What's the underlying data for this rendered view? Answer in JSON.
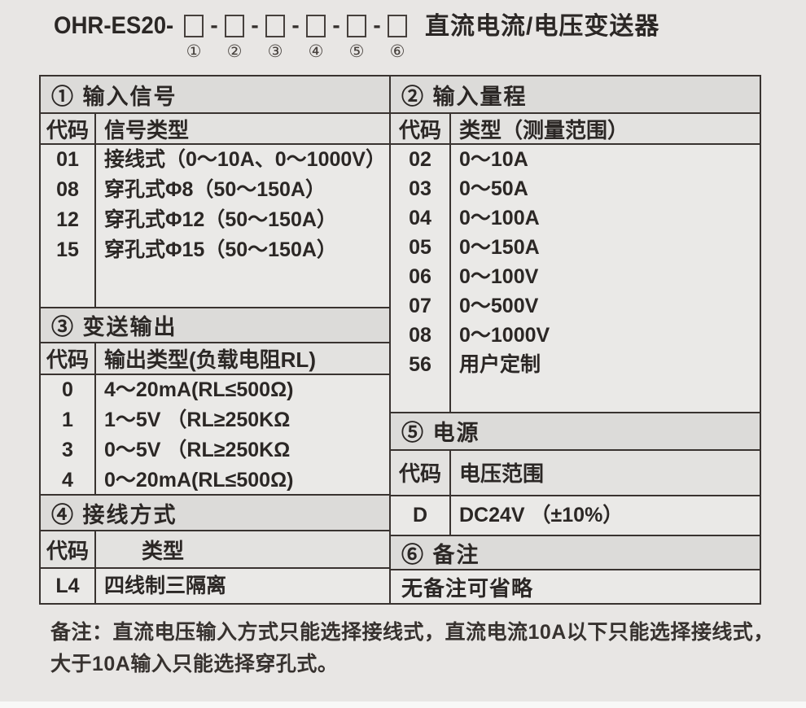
{
  "title": {
    "model_prefix": "OHR-ES20-",
    "separator": "-",
    "box_labels": [
      "①",
      "②",
      "③",
      "④",
      "⑤",
      "⑥"
    ],
    "product_name": "直流电流/电压变送器"
  },
  "sections": {
    "s1": {
      "header": "① 输入信号",
      "col_code": "代码",
      "col_type": "信号类型",
      "rows": [
        {
          "code": "01",
          "type": "接线式（0～10A、0～1000V）"
        },
        {
          "code": "08",
          "type": "穿孔式Φ8（50～150A）"
        },
        {
          "code": "12",
          "type": "穿孔式Φ12（50～150A）"
        },
        {
          "code": "15",
          "type": "穿孔式Φ15（50～150A）"
        }
      ]
    },
    "s2": {
      "header": "② 输入量程",
      "col_code": "代码",
      "col_type": "类型（测量范围）",
      "rows": [
        {
          "code": "02",
          "type": "0～10A"
        },
        {
          "code": "03",
          "type": "0～50A"
        },
        {
          "code": "04",
          "type": "0～100A"
        },
        {
          "code": "05",
          "type": "0～150A"
        },
        {
          "code": "06",
          "type": "0～100V"
        },
        {
          "code": "07",
          "type": "0～500V"
        },
        {
          "code": "08",
          "type": "0～1000V"
        },
        {
          "code": "56",
          "type": "用户定制"
        }
      ]
    },
    "s3": {
      "header": "③ 变送输出",
      "col_code": "代码",
      "col_type": "输出类型(负载电阻RL)",
      "rows": [
        {
          "code": "0",
          "type": "4～20mA(RL≤500Ω)"
        },
        {
          "code": "1",
          "type": "1～5V （RL≥250KΩ"
        },
        {
          "code": "3",
          "type": "0～5V （RL≥250KΩ"
        },
        {
          "code": "4",
          "type": "0～20mA(RL≤500Ω)"
        }
      ]
    },
    "s4": {
      "header": "④ 接线方式",
      "col_code": "代码",
      "col_type": "类型",
      "rows": [
        {
          "code": "L4",
          "type": "四线制三隔离"
        }
      ]
    },
    "s5": {
      "header": "⑤ 电源",
      "col_code": "代码",
      "col_type": "电压范围",
      "rows": [
        {
          "code": "D",
          "type": "DC24V （±10%）"
        }
      ]
    },
    "s6": {
      "header": "⑥ 备注",
      "body": "无备注可省略"
    }
  },
  "note": "备注：直流电压输入方式只能选择接线式，直流电流10A以下只能选择接线式，大于10A输入只能选择穿孔式。",
  "colors": {
    "page_bg": "#e8e6e4",
    "section_header_bg": "#dcdbd9",
    "cell_bg": "#eae9e7",
    "border": "#393330",
    "text": "#2b2725"
  }
}
